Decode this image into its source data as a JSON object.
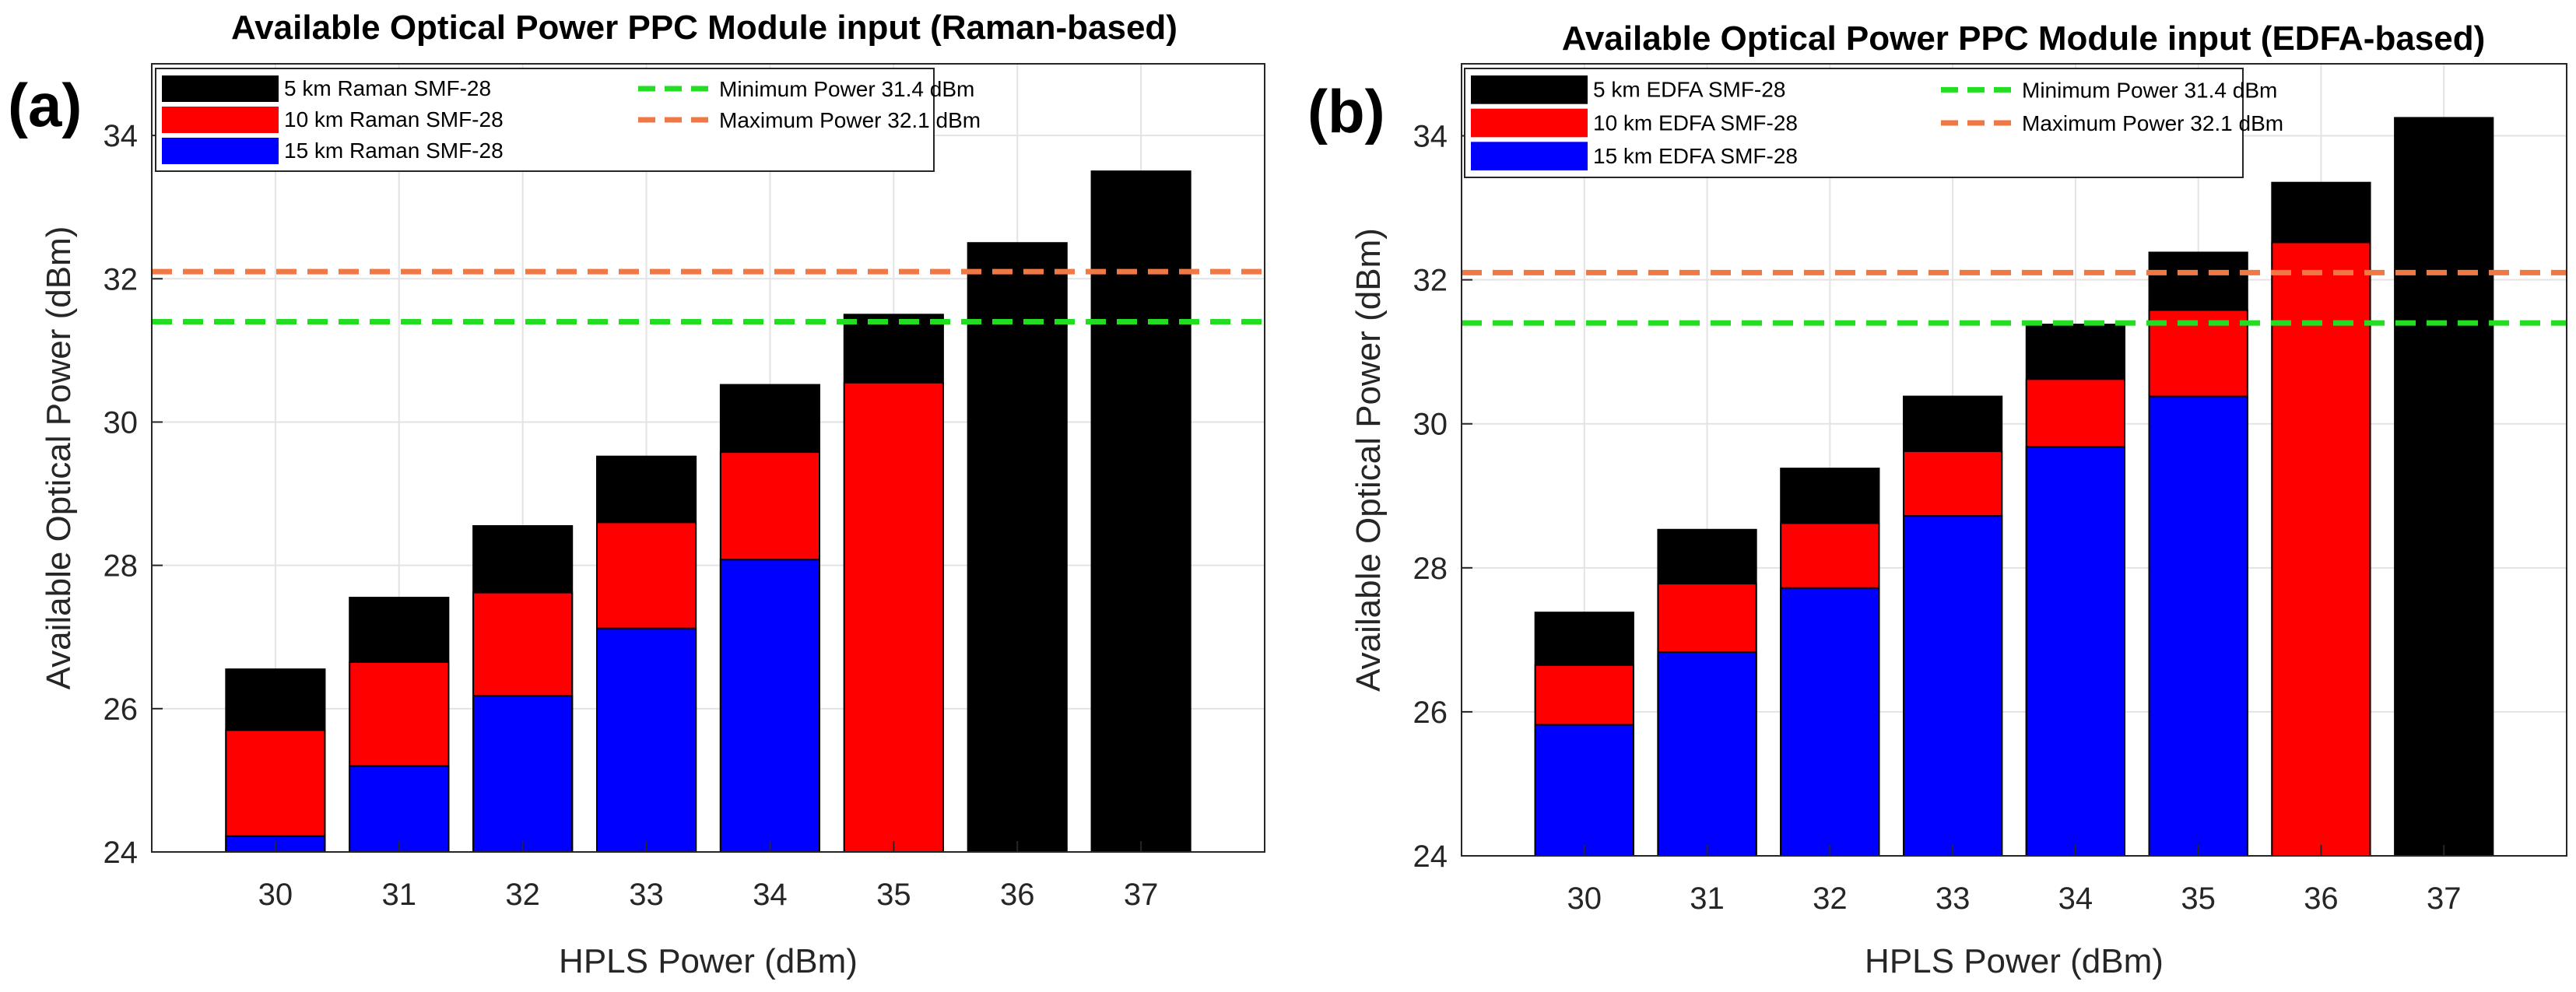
{
  "chart_data": [
    {
      "type": "bar",
      "stacked": false,
      "panel_label": "(a)",
      "title": "Available Optical Power PPC Module input (Raman-based)",
      "xlabel": "HPLS Power (dBm)",
      "ylabel": "Available Optical Power (dBm)",
      "categories": [
        "30",
        "31",
        "32",
        "33",
        "34",
        "35",
        "36",
        "37"
      ],
      "ylim": [
        24,
        35
      ],
      "yticks": [
        24,
        26,
        28,
        30,
        32,
        34
      ],
      "grid": true,
      "legend_position": "top-left",
      "series": [
        {
          "name": "5 km Raman SMF-28",
          "color": "#000000",
          "values": [
            26.55,
            27.55,
            28.55,
            29.52,
            30.52,
            31.5,
            32.5,
            33.5
          ]
        },
        {
          "name": "10 km Raman SMF-28",
          "color": "#ff0000",
          "values": [
            25.7,
            26.65,
            27.62,
            28.6,
            29.58,
            30.55,
            null,
            null
          ]
        },
        {
          "name": "15 km Raman SMF-28",
          "color": "#0000ff",
          "values": [
            24.22,
            25.2,
            26.18,
            27.12,
            28.08,
            null,
            null,
            null
          ]
        }
      ],
      "reference_lines": [
        {
          "name": "Minimum Power 31.4 dBm",
          "value": 31.4,
          "color": "#22dd22"
        },
        {
          "name": "Maximum Power 32.1 dBm",
          "value": 32.1,
          "color": "#f07845"
        }
      ]
    },
    {
      "type": "bar",
      "stacked": false,
      "panel_label": "(b)",
      "title": "Available Optical Power PPC Module input (EDFA-based)",
      "xlabel": "HPLS Power (dBm)",
      "ylabel": "Available Optical Power (dBm)",
      "categories": [
        "30",
        "31",
        "32",
        "33",
        "34",
        "35",
        "36",
        "37"
      ],
      "ylim": [
        24,
        35
      ],
      "yticks": [
        24,
        26,
        28,
        30,
        32,
        34
      ],
      "grid": true,
      "legend_position": "top-left",
      "series": [
        {
          "name": "5 km EDFA SMF-28",
          "color": "#000000",
          "values": [
            27.38,
            28.53,
            29.38,
            30.38,
            31.38,
            32.38,
            33.35,
            34.25
          ]
        },
        {
          "name": "10 km EDFA SMF-28",
          "color": "#ff0000",
          "values": [
            26.65,
            27.78,
            28.62,
            29.62,
            30.62,
            31.58,
            32.52,
            null
          ]
        },
        {
          "name": "15 km EDFA SMF-28",
          "color": "#0000ff",
          "values": [
            25.82,
            26.83,
            27.72,
            28.72,
            29.68,
            30.38,
            null,
            null
          ]
        }
      ],
      "reference_lines": [
        {
          "name": "Minimum Power 31.4 dBm",
          "value": 31.4,
          "color": "#22dd22"
        },
        {
          "name": "Maximum Power 32.1 dBm",
          "value": 32.1,
          "color": "#f07845"
        }
      ]
    }
  ]
}
